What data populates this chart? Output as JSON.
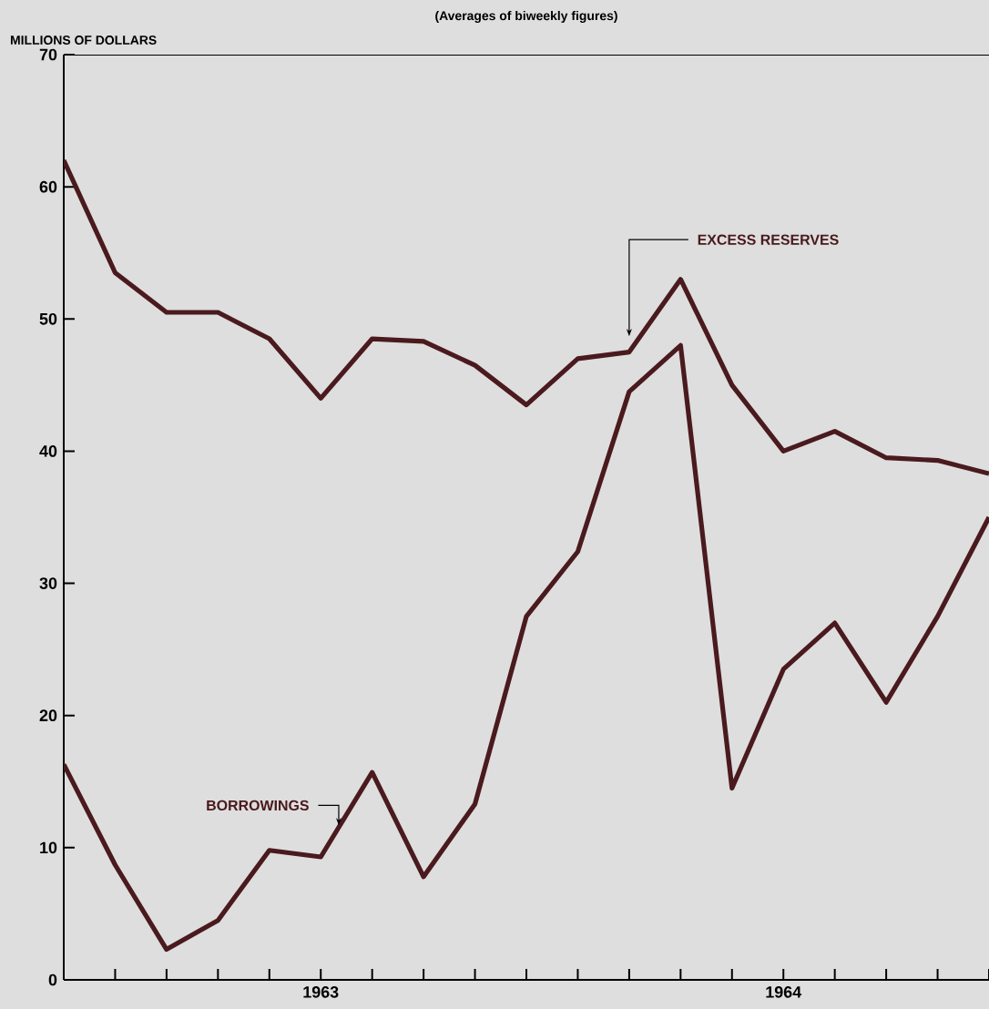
{
  "chart_data": {
    "type": "line",
    "subtitle": "(Averages of biweekly figures)",
    "ylabel": "MILLIONS OF DOLLARS",
    "categories": [
      null,
      null,
      null,
      null,
      null,
      "1963",
      null,
      null,
      null,
      null,
      null,
      null,
      null,
      null,
      "1964",
      null,
      null,
      null,
      null
    ],
    "ylim": [
      0,
      70
    ],
    "yticks": [
      0,
      10,
      20,
      30,
      40,
      50,
      60,
      70
    ],
    "grid": false,
    "legend": false,
    "marker": "none",
    "line_style": "solid",
    "series": [
      {
        "name": "EXCESS RESERVES",
        "color": "#4a1a1e",
        "values": [
          62,
          53.5,
          50.5,
          50.5,
          48.5,
          44,
          48.5,
          48.3,
          46.5,
          43.5,
          47,
          47.5,
          53,
          45,
          40,
          41.5,
          39.5,
          39.3,
          38.3
        ]
      },
      {
        "name": "BORROWINGS",
        "color": "#4a1a1e",
        "values": [
          16.3,
          8.7,
          2.3,
          4.5,
          9.8,
          9.3,
          15.7,
          7.8,
          13.3,
          27.5,
          32.4,
          44.5,
          48,
          14.5,
          23.5,
          27,
          21,
          27.5,
          35
        ]
      }
    ]
  }
}
